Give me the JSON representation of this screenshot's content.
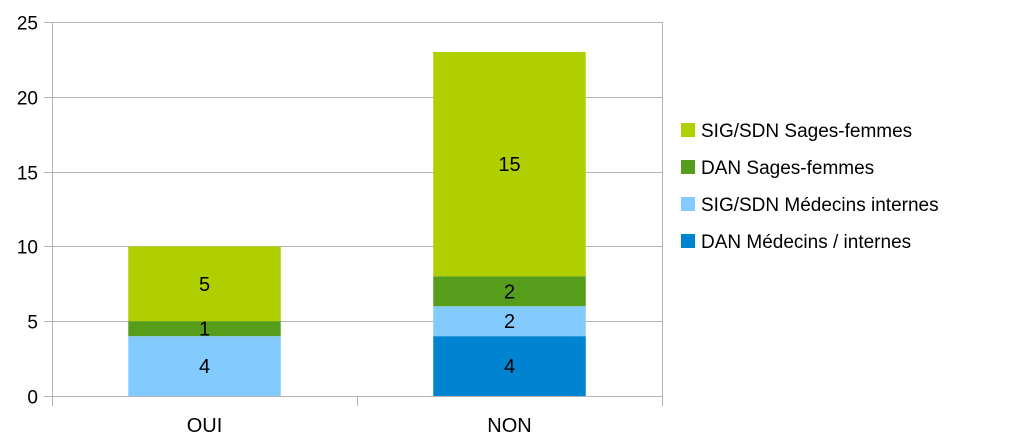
{
  "chart_data": {
    "type": "bar",
    "stacked": true,
    "categories": [
      "OUI",
      "NON"
    ],
    "series": [
      {
        "name": "DAN Médecins / internes",
        "values": [
          0,
          4
        ],
        "color": "#0084d1"
      },
      {
        "name": "SIG/SDN Médecins internes",
        "values": [
          4,
          2
        ],
        "color": "#83caff"
      },
      {
        "name": "DAN Sages-femmes",
        "values": [
          1,
          2
        ],
        "color": "#579d1c"
      },
      {
        "name": "SIG/SDN Sages-femmes",
        "values": [
          5,
          15
        ],
        "color": "#b0cf00"
      }
    ],
    "ylim": [
      0,
      25
    ],
    "yticks": [
      0,
      5,
      10,
      15,
      20,
      25
    ],
    "grid": true,
    "legend": "right"
  }
}
